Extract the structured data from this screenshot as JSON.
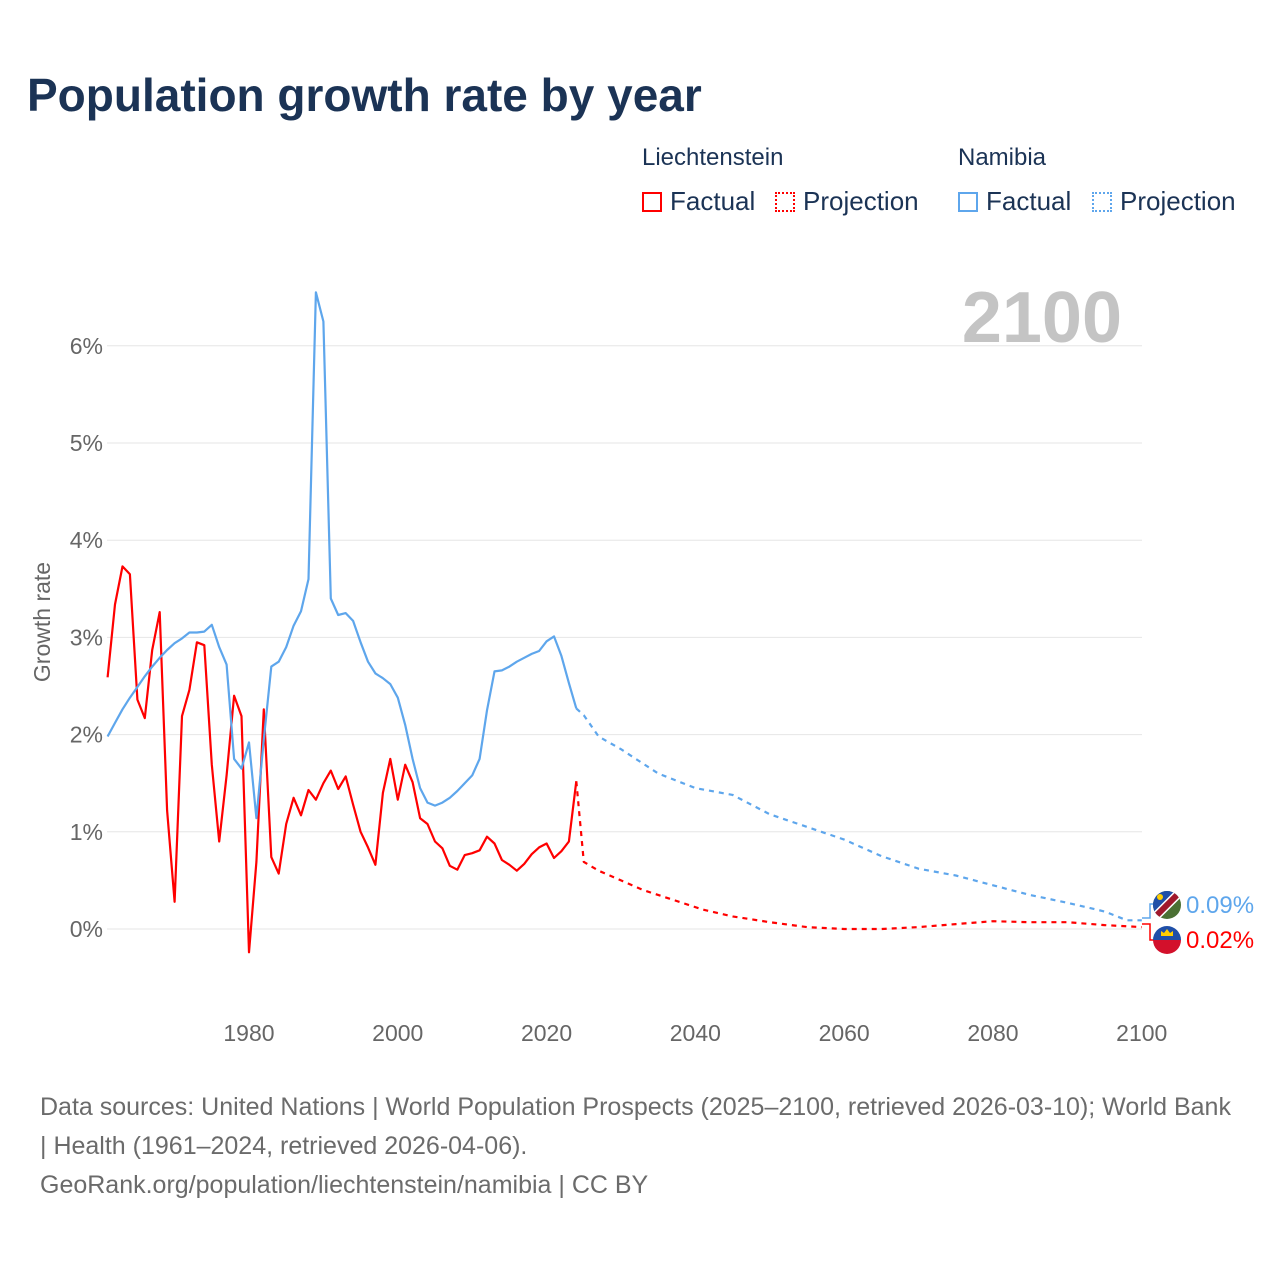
{
  "title": "Population growth rate by year",
  "legend": {
    "groups": [
      {
        "country": "Liechtenstein",
        "factual": "Factual",
        "projection": "Projection",
        "color": "#ff0000"
      },
      {
        "country": "Namibia",
        "factual": "Factual",
        "projection": "Projection",
        "color": "#5ea6ec"
      }
    ]
  },
  "year_watermark": "2100",
  "end_labels": {
    "namibia": "0.09%",
    "liechtenstein": "0.02%"
  },
  "source_lines": [
    "Data sources: United Nations | World Population Prospects (2025–2100, retrieved 2026-03-10); World Bank | Health (1961–2024, retrieved 2026-04-06).",
    "GeoRank.org/population/liechtenstein/namibia | CC BY"
  ],
  "chart_data": {
    "type": "line",
    "title": "Population growth rate by year",
    "xlabel": "",
    "ylabel": "Growth rate",
    "xlim": [
      1961,
      2100
    ],
    "ylim": [
      -0.8,
      6.6
    ],
    "x_ticks": [
      {
        "v": 1980,
        "label": "1980"
      },
      {
        "v": 2000,
        "label": "2000"
      },
      {
        "v": 2020,
        "label": "2020"
      },
      {
        "v": 2040,
        "label": "2040"
      },
      {
        "v": 2060,
        "label": "2060"
      },
      {
        "v": 2080,
        "label": "2080"
      },
      {
        "v": 2100,
        "label": "2100"
      }
    ],
    "y_ticks": [
      {
        "v": 0,
        "label": "0%"
      },
      {
        "v": 1,
        "label": "1%"
      },
      {
        "v": 2,
        "label": "2%"
      },
      {
        "v": 3,
        "label": "3%"
      },
      {
        "v": 4,
        "label": "4%"
      },
      {
        "v": 5,
        "label": "5%"
      },
      {
        "v": 6,
        "label": "6%"
      }
    ],
    "grid": true,
    "series": [
      {
        "name": "Liechtenstein Factual",
        "color": "#ff0000",
        "dashed": false,
        "start_year": 1961,
        "values": [
          2.59,
          3.34,
          3.73,
          3.65,
          2.36,
          2.17,
          2.87,
          3.26,
          1.22,
          0.28,
          2.19,
          2.46,
          2.95,
          2.92,
          1.69,
          0.9,
          1.58,
          2.4,
          2.19,
          -0.24,
          0.69,
          2.26,
          0.74,
          0.57,
          1.08,
          1.35,
          1.17,
          1.43,
          1.33,
          1.5,
          1.63,
          1.44,
          1.57,
          1.28,
          1.0,
          0.84,
          0.66,
          1.4,
          1.75,
          1.33,
          1.69,
          1.51,
          1.14,
          1.08,
          0.9,
          0.83,
          0.65,
          0.61,
          0.76,
          0.78,
          0.81,
          0.95,
          0.88,
          0.71,
          0.66,
          0.6,
          0.67,
          0.77,
          0.84,
          0.88,
          0.73,
          0.8,
          0.9,
          1.52
        ]
      },
      {
        "name": "Liechtenstein Projection",
        "color": "#ff0000",
        "dashed": true,
        "points": [
          [
            2024,
            1.52
          ],
          [
            2025,
            0.69
          ],
          [
            2027,
            0.6
          ],
          [
            2030,
            0.5
          ],
          [
            2033,
            0.4
          ],
          [
            2037,
            0.3
          ],
          [
            2041,
            0.2
          ],
          [
            2045,
            0.13
          ],
          [
            2050,
            0.07
          ],
          [
            2055,
            0.02
          ],
          [
            2060,
            0.0
          ],
          [
            2065,
            0.0
          ],
          [
            2070,
            0.02
          ],
          [
            2075,
            0.05
          ],
          [
            2080,
            0.08
          ],
          [
            2085,
            0.07
          ],
          [
            2090,
            0.07
          ],
          [
            2095,
            0.04
          ],
          [
            2100,
            0.02
          ]
        ]
      },
      {
        "name": "Namibia Factual",
        "color": "#5ea6ec",
        "dashed": false,
        "start_year": 1961,
        "values": [
          1.98,
          2.12,
          2.26,
          2.38,
          2.49,
          2.6,
          2.7,
          2.79,
          2.87,
          2.94,
          2.99,
          3.05,
          3.05,
          3.06,
          3.13,
          2.9,
          2.72,
          1.75,
          1.65,
          1.92,
          1.14,
          1.95,
          2.7,
          2.75,
          2.9,
          3.12,
          3.27,
          3.6,
          6.55,
          6.25,
          3.4,
          3.23,
          3.25,
          3.17,
          2.95,
          2.75,
          2.63,
          2.58,
          2.52,
          2.38,
          2.1,
          1.75,
          1.45,
          1.3,
          1.27,
          1.3,
          1.35,
          1.42,
          1.5,
          1.58,
          1.75,
          2.25,
          2.65,
          2.66,
          2.7,
          2.75,
          2.79,
          2.83,
          2.86,
          2.96,
          3.01,
          2.81,
          2.53,
          2.27
        ]
      },
      {
        "name": "Namibia Projection",
        "color": "#5ea6ec",
        "dashed": true,
        "points": [
          [
            2024,
            2.27
          ],
          [
            2025,
            2.2
          ],
          [
            2027,
            1.98
          ],
          [
            2030,
            1.85
          ],
          [
            2035,
            1.6
          ],
          [
            2040,
            1.45
          ],
          [
            2045,
            1.38
          ],
          [
            2050,
            1.18
          ],
          [
            2055,
            1.05
          ],
          [
            2060,
            0.92
          ],
          [
            2065,
            0.75
          ],
          [
            2070,
            0.62
          ],
          [
            2075,
            0.55
          ],
          [
            2080,
            0.45
          ],
          [
            2085,
            0.35
          ],
          [
            2090,
            0.27
          ],
          [
            2095,
            0.18
          ],
          [
            2098,
            0.09
          ],
          [
            2100,
            0.09
          ]
        ]
      }
    ]
  }
}
